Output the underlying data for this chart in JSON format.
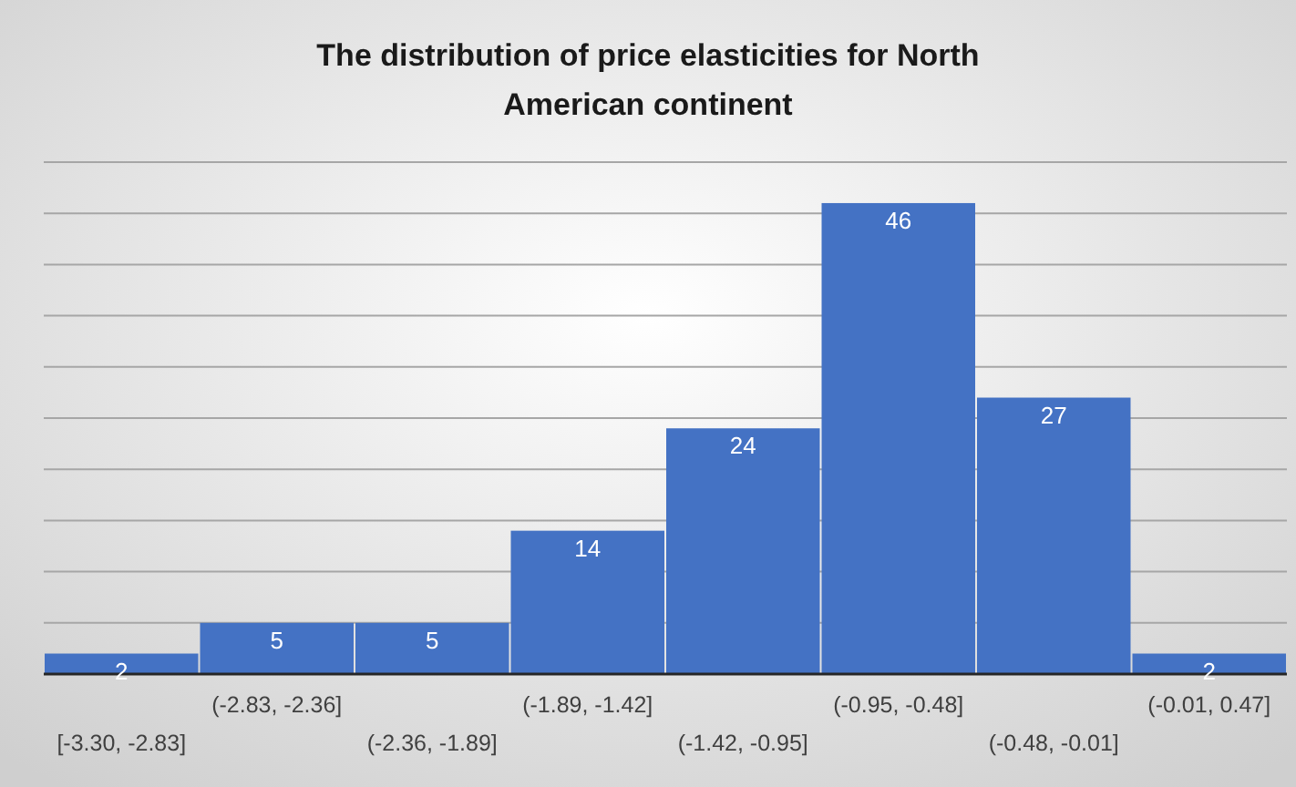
{
  "chart_data": {
    "type": "bar",
    "title": "The distribution of price elasticities for North American continent",
    "categories": [
      "[-3.30, -2.83]",
      "(-2.83, -2.36]",
      "(-2.36, -1.89]",
      "(-1.89, -1.42]",
      "(-1.42, -0.95]",
      "(-0.95, -0.48]",
      "(-0.48, -0.01]",
      "(-0.01, 0.47]"
    ],
    "values": [
      2,
      5,
      5,
      14,
      24,
      46,
      27,
      2
    ],
    "color": "#4472c4",
    "ylim": [
      0,
      50
    ],
    "yticks": [
      {
        "value": 0,
        "label": null
      },
      {
        "value": 5,
        "label": null
      },
      {
        "value": 10,
        "label": null
      },
      {
        "value": 15,
        "label": null
      },
      {
        "value": 20,
        "label": null
      },
      {
        "value": 25,
        "label": null
      },
      {
        "value": 30,
        "label": null
      },
      {
        "value": 35,
        "label": null
      },
      {
        "value": 40,
        "label": null
      },
      {
        "value": 45,
        "label": null
      },
      {
        "value": 50,
        "label": null
      }
    ],
    "grid": "y",
    "tick_labels": "x",
    "data_labels": true
  }
}
